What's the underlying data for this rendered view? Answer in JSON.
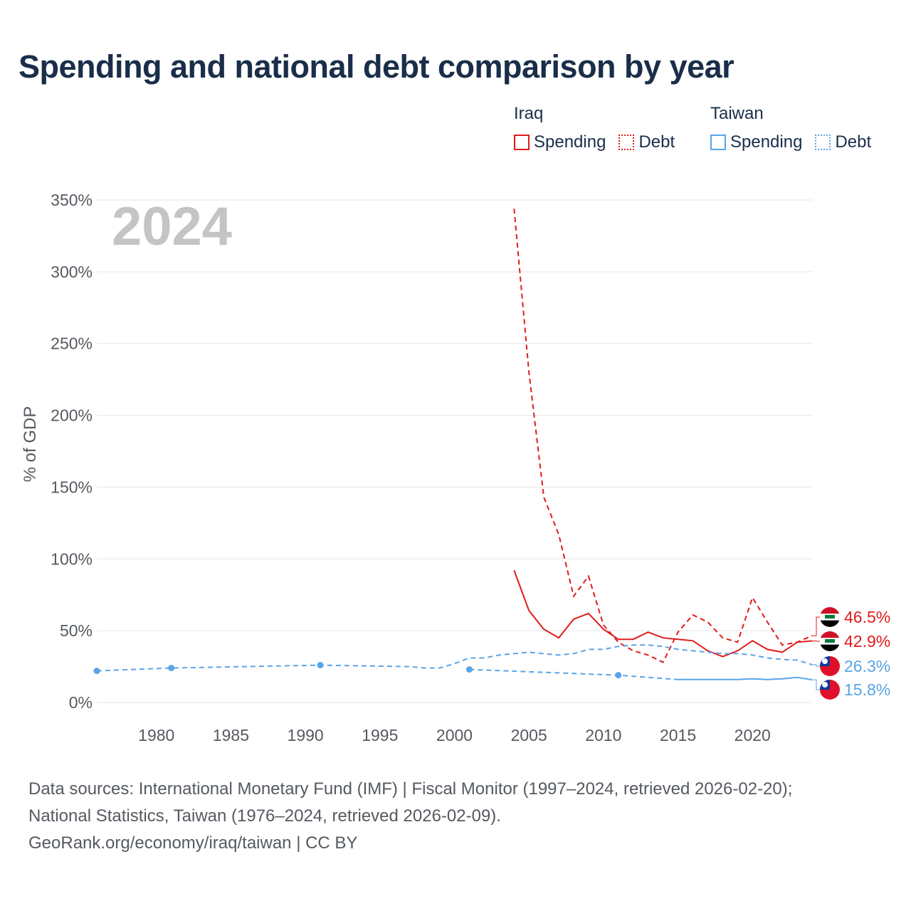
{
  "title": "Spending and national debt comparison by year",
  "year_label": "2024",
  "legend": {
    "groups": [
      {
        "country": "Iraq",
        "color": "#e01b1b",
        "items": [
          {
            "label": "Spending",
            "style": "solid"
          },
          {
            "label": "Debt",
            "style": "dotted"
          }
        ]
      },
      {
        "country": "Taiwan",
        "color": "#5aa5e6",
        "items": [
          {
            "label": "Spending",
            "style": "solid"
          },
          {
            "label": "Debt",
            "style": "dotted"
          }
        ]
      }
    ]
  },
  "source": {
    "line1": "Data sources: International Monetary Fund (IMF) | Fiscal Monitor (1997–2024, retrieved 2026-02-20);",
    "line2": "National Statistics, Taiwan (1976–2024, retrieved 2026-02-09).",
    "line3": "GeoRank.org/economy/iraq/taiwan | CC BY"
  },
  "chart_data": {
    "type": "line",
    "title": "Spending and national debt comparison by year",
    "ylabel": "% of GDP",
    "xlabel": "",
    "xlim": [
      1976,
      2024
    ],
    "ylim": [
      0,
      350
    ],
    "x_ticks": [
      1980,
      1985,
      1990,
      1995,
      2000,
      2005,
      2010,
      2015,
      2020
    ],
    "y_ticks": [
      0,
      50,
      100,
      150,
      200,
      250,
      300,
      350
    ],
    "y_tick_labels": [
      "0%",
      "50%",
      "100%",
      "150%",
      "200%",
      "250%",
      "300%",
      "350%"
    ],
    "grid": true,
    "series": [
      {
        "name": "Iraq Debt",
        "country": "Iraq",
        "kind": "debt",
        "color": "#e01b1b",
        "dash": "dashed",
        "x": [
          2004,
          2005,
          2006,
          2007,
          2008,
          2009,
          2010,
          2011,
          2012,
          2013,
          2014,
          2015,
          2016,
          2017,
          2018,
          2019,
          2020,
          2021,
          2022,
          2023,
          2024
        ],
        "y": [
          344,
          230,
          143,
          117,
          74,
          88,
          54,
          42,
          36,
          33,
          28,
          49,
          61,
          56,
          45,
          42,
          73,
          56,
          40,
          42,
          46.5
        ],
        "end_label": "46.5%"
      },
      {
        "name": "Iraq Spending",
        "country": "Iraq",
        "kind": "spending",
        "color": "#e01b1b",
        "dash": "solid",
        "x": [
          2004,
          2005,
          2006,
          2007,
          2008,
          2009,
          2010,
          2011,
          2012,
          2013,
          2014,
          2015,
          2016,
          2017,
          2018,
          2019,
          2020,
          2021,
          2022,
          2023,
          2024
        ],
        "y": [
          92,
          64,
          51,
          45,
          58,
          62,
          51,
          44,
          44,
          49,
          45,
          44,
          43,
          36,
          32,
          36,
          43,
          37,
          35,
          42,
          42.9
        ],
        "end_label": "42.9%"
      },
      {
        "name": "Taiwan Debt",
        "country": "Taiwan",
        "kind": "debt",
        "color": "#5aa5e6",
        "dash": "dashed",
        "x": [
          1976,
          1981,
          1991,
          1997,
          1998,
          1999,
          2000,
          2001,
          2002,
          2003,
          2004,
          2005,
          2006,
          2007,
          2008,
          2009,
          2010,
          2011,
          2012,
          2013,
          2014,
          2015,
          2016,
          2017,
          2018,
          2019,
          2020,
          2021,
          2022,
          2023,
          2024
        ],
        "y": [
          22,
          24,
          26,
          25,
          24,
          24,
          27,
          31,
          31,
          33,
          34,
          35,
          34,
          33,
          34,
          37,
          37,
          39,
          40,
          40,
          39,
          37,
          36,
          35,
          34,
          34,
          33,
          31,
          30,
          29.5,
          26.3
        ],
        "markers_x": [
          1976,
          1981,
          1991
        ],
        "end_label": "26.3%"
      },
      {
        "name": "Taiwan Spending",
        "country": "Taiwan",
        "kind": "spending",
        "color": "#5aa5e6",
        "dash": "mixed",
        "x": [
          2001,
          2011,
          2015,
          2016,
          2017,
          2018,
          2019,
          2020,
          2021,
          2022,
          2023,
          2024
        ],
        "y": [
          23,
          19,
          16,
          16,
          16,
          16,
          16,
          16.5,
          16,
          16.5,
          17.5,
          15.8
        ],
        "dashed_until_x": 2015,
        "markers_x": [
          2001,
          2011
        ],
        "end_label": "15.8%"
      }
    ]
  }
}
